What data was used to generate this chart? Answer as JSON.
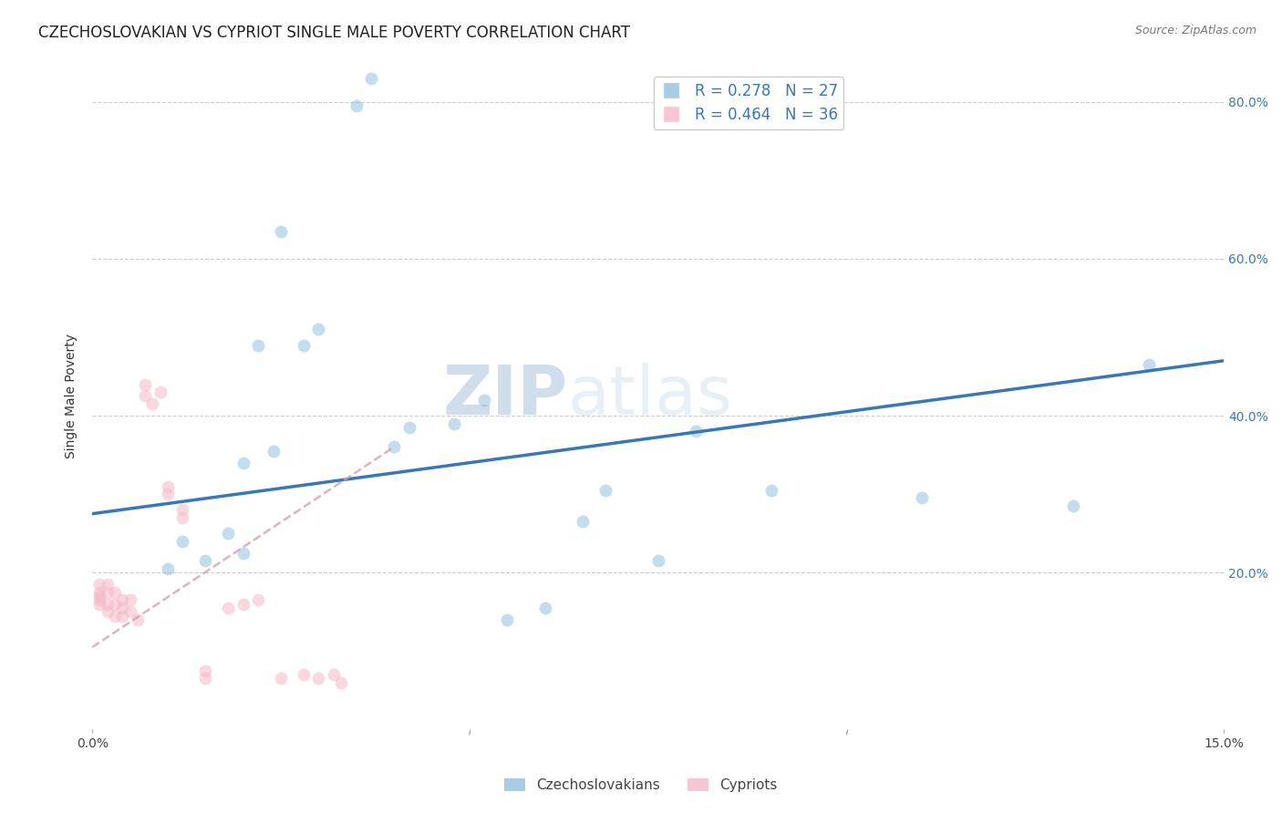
{
  "title": "CZECHOSLOVAKIAN VS CYPRIOT SINGLE MALE POVERTY CORRELATION CHART",
  "source": "Source: ZipAtlas.com",
  "ylabel": "Single Male Poverty",
  "watermark_zip": "ZIP",
  "watermark_atlas": "atlas",
  "xlim": [
    0,
    0.15
  ],
  "ylim": [
    0,
    0.85
  ],
  "yticks": [
    0.2,
    0.4,
    0.6,
    0.8
  ],
  "xtick_positions": [
    0.0,
    0.05,
    0.1,
    0.15
  ],
  "xtick_labels": [
    "0.0%",
    "",
    "",
    "15.0%"
  ],
  "ytick_labels_right": [
    "20.0%",
    "40.0%",
    "60.0%",
    "80.0%"
  ],
  "blue_R": 0.278,
  "blue_N": 27,
  "pink_R": 0.464,
  "pink_N": 36,
  "blue_color": "#92c0e0",
  "pink_color": "#f5b8c8",
  "blue_line_color": "#3a78b5",
  "pink_line_color": "#e87a9a",
  "legend_blue_label": "Czechoslovakians",
  "legend_pink_label": "Cypriots",
  "blue_x": [
    0.035,
    0.037,
    0.025,
    0.03,
    0.022,
    0.028,
    0.02,
    0.024,
    0.04,
    0.042,
    0.048,
    0.052,
    0.068,
    0.065,
    0.08,
    0.09,
    0.11,
    0.13,
    0.14,
    0.01,
    0.012,
    0.015,
    0.018,
    0.02,
    0.055,
    0.06,
    0.075
  ],
  "blue_y": [
    0.795,
    0.83,
    0.635,
    0.51,
    0.49,
    0.49,
    0.34,
    0.355,
    0.36,
    0.385,
    0.39,
    0.42,
    0.305,
    0.265,
    0.38,
    0.305,
    0.295,
    0.285,
    0.465,
    0.205,
    0.24,
    0.215,
    0.25,
    0.225,
    0.14,
    0.155,
    0.215
  ],
  "pink_x": [
    0.001,
    0.001,
    0.001,
    0.001,
    0.001,
    0.002,
    0.002,
    0.002,
    0.002,
    0.003,
    0.003,
    0.003,
    0.004,
    0.004,
    0.004,
    0.005,
    0.005,
    0.006,
    0.007,
    0.007,
    0.008,
    0.009,
    0.01,
    0.01,
    0.012,
    0.012,
    0.015,
    0.015,
    0.018,
    0.02,
    0.022,
    0.025,
    0.028,
    0.03,
    0.032,
    0.033
  ],
  "pink_y": [
    0.16,
    0.165,
    0.17,
    0.175,
    0.185,
    0.15,
    0.16,
    0.175,
    0.185,
    0.145,
    0.16,
    0.175,
    0.145,
    0.155,
    0.165,
    0.15,
    0.165,
    0.14,
    0.425,
    0.44,
    0.415,
    0.43,
    0.3,
    0.31,
    0.27,
    0.28,
    0.065,
    0.075,
    0.155,
    0.16,
    0.165,
    0.065,
    0.07,
    0.065,
    0.07,
    0.06
  ],
  "blue_trend_x": [
    0.0,
    0.15
  ],
  "blue_trend_y": [
    0.275,
    0.47
  ],
  "pink_trend_x": [
    0.0,
    0.04
  ],
  "pink_trend_y": [
    0.105,
    0.36
  ],
  "marker_size": 100,
  "marker_alpha": 0.55,
  "grid_color": "#cccccc",
  "background_color": "#ffffff",
  "title_fontsize": 12,
  "axis_label_fontsize": 10,
  "tick_fontsize": 10,
  "legend_fontsize": 12
}
